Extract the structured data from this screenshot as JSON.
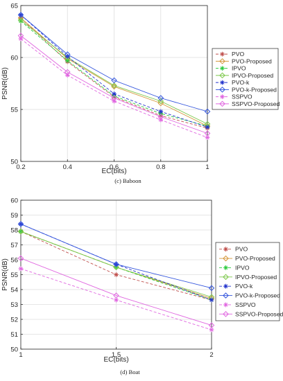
{
  "chart_data": [
    {
      "type": "line",
      "caption": "(c)  Baboon",
      "xlabel": "EC(bits)",
      "ylabel": "PSNR(dB)",
      "xlim": [
        0.2,
        1
      ],
      "ylim": [
        50,
        65
      ],
      "xticks": [
        0.2,
        0.4,
        0.6,
        0.8,
        1
      ],
      "xtick_labels": [
        "0.2",
        "0.4",
        "0.6",
        "0.8",
        "1"
      ],
      "yticks": [
        50,
        55,
        60,
        65
      ],
      "ytick_labels": [
        "50",
        "55",
        "60",
        "65"
      ],
      "grid": true,
      "legend_position": "right",
      "x": [
        0.2,
        0.4,
        0.6,
        0.8,
        1.0
      ],
      "series": [
        {
          "name": "PVO",
          "values": [
            63.8,
            59.6,
            56.2,
            54.4,
            53.2
          ],
          "color": "#c0504d",
          "marker": "star",
          "dashed": true
        },
        {
          "name": "PVO-Proposed",
          "values": [
            63.8,
            59.9,
            57.2,
            55.6,
            53.4
          ],
          "color": "#d4973a",
          "marker": "diamond",
          "dashed": false
        },
        {
          "name": "IPVO",
          "values": [
            63.5,
            59.7,
            56.3,
            54.6,
            53.4
          ],
          "color": "#2ecc40",
          "marker": "star",
          "dashed": true
        },
        {
          "name": "IPVO-Proposed",
          "values": [
            63.6,
            60.0,
            57.3,
            55.8,
            53.6
          ],
          "color": "#7cc84a",
          "marker": "diamond",
          "dashed": false
        },
        {
          "name": "PVO-k",
          "values": [
            64.1,
            60.1,
            56.5,
            54.8,
            53.3
          ],
          "color": "#2233cc",
          "marker": "star",
          "dashed": true
        },
        {
          "name": "PVO-k-Proposed",
          "values": [
            64.1,
            60.3,
            57.8,
            56.1,
            54.8
          ],
          "color": "#3355dd",
          "marker": "diamond",
          "dashed": false
        },
        {
          "name": "SSPVO",
          "values": [
            61.8,
            58.3,
            55.8,
            54.0,
            52.3
          ],
          "color": "#e066e0",
          "marker": "star",
          "dashed": true
        },
        {
          "name": "SSPVO-Proposed",
          "values": [
            62.1,
            58.6,
            56.1,
            54.3,
            52.7
          ],
          "color": "#e066e0",
          "marker": "diamond",
          "dashed": false
        }
      ]
    },
    {
      "type": "line",
      "caption": "(d)  Boat",
      "xlabel": "EC(bits)",
      "ylabel": "PSNR(dB)",
      "xlim": [
        1,
        2
      ],
      "ylim": [
        50,
        60
      ],
      "xticks": [
        1,
        1.5,
        2
      ],
      "xtick_labels": [
        "1",
        "1.5",
        "2"
      ],
      "yticks": [
        50,
        51,
        52,
        53,
        54,
        55,
        56,
        57,
        58,
        59,
        60
      ],
      "ytick_labels": [
        "50",
        "51",
        "52",
        "53",
        "54",
        "55",
        "56",
        "57",
        "58",
        "59",
        "60"
      ],
      "grid": true,
      "legend_position": "right",
      "x": [
        1,
        1.5,
        2
      ],
      "series": [
        {
          "name": "PVO",
          "values": [
            57.9,
            55.0,
            53.3
          ],
          "color": "#c0504d",
          "marker": "star",
          "dashed": true
        },
        {
          "name": "PVO-Proposed",
          "values": [
            57.9,
            55.5,
            53.4
          ],
          "color": "#d4973a",
          "marker": "diamond",
          "dashed": false
        },
        {
          "name": "IPVO",
          "values": [
            57.9,
            55.5,
            53.3
          ],
          "color": "#2ecc40",
          "marker": "star",
          "dashed": true
        },
        {
          "name": "IPVO-Proposed",
          "values": [
            57.9,
            55.5,
            53.5
          ],
          "color": "#7cc84a",
          "marker": "diamond",
          "dashed": false
        },
        {
          "name": "PVO-k",
          "values": [
            58.4,
            55.7,
            53.3
          ],
          "color": "#2233cc",
          "marker": "star",
          "dashed": true
        },
        {
          "name": "PVO-k-Proposed",
          "values": [
            58.4,
            55.7,
            54.1
          ],
          "color": "#3355dd",
          "marker": "diamond",
          "dashed": false
        },
        {
          "name": "SSPVO",
          "values": [
            55.4,
            53.3,
            51.3
          ],
          "color": "#e066e0",
          "marker": "star",
          "dashed": true
        },
        {
          "name": "SSPVO-Proposed",
          "values": [
            56.1,
            53.6,
            51.6
          ],
          "color": "#e066e0",
          "marker": "diamond",
          "dashed": false
        }
      ]
    }
  ]
}
